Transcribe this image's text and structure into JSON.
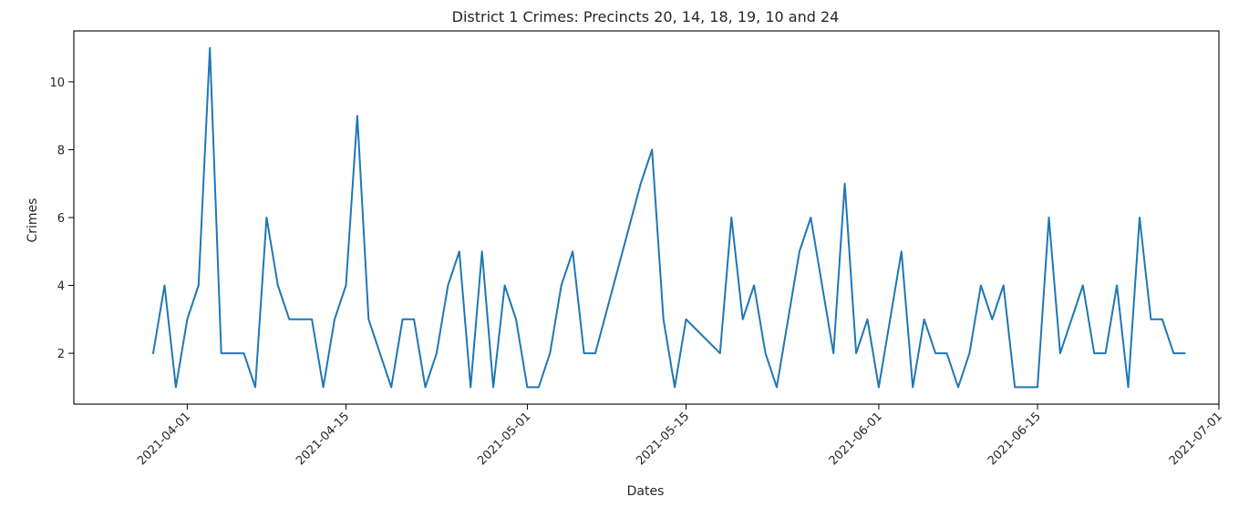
{
  "chart_data": {
    "type": "line",
    "title": "District 1 Crimes: Precincts 20, 14, 18, 19, 10 and 24",
    "xlabel": "Dates",
    "ylabel": "Crimes",
    "xlim": [
      "2021-03-22",
      "2021-07-01"
    ],
    "ylim": [
      0.5,
      11.5
    ],
    "x_ticks": [
      "2021-04-01",
      "2021-04-15",
      "2021-05-01",
      "2021-05-15",
      "2021-06-01",
      "2021-06-15",
      "2021-07-01"
    ],
    "y_ticks": [
      2,
      4,
      6,
      8,
      10
    ],
    "grid": false,
    "series": [
      {
        "name": "Crimes",
        "color": "#1f77b4",
        "x": [
          "2021-03-29",
          "2021-03-30",
          "2021-03-31",
          "2021-04-01",
          "2021-04-02",
          "2021-04-03",
          "2021-04-04",
          "2021-04-05",
          "2021-04-06",
          "2021-04-07",
          "2021-04-08",
          "2021-04-09",
          "2021-04-10",
          "2021-04-12",
          "2021-04-13",
          "2021-04-14",
          "2021-04-15",
          "2021-04-16",
          "2021-04-17",
          "2021-04-19",
          "2021-04-20",
          "2021-04-21",
          "2021-04-22",
          "2021-04-23",
          "2021-04-24",
          "2021-04-25",
          "2021-04-26",
          "2021-04-27",
          "2021-04-28",
          "2021-04-29",
          "2021-04-30",
          "2021-05-01",
          "2021-05-02",
          "2021-05-03",
          "2021-05-04",
          "2021-05-05",
          "2021-05-06",
          "2021-05-07",
          "2021-05-11",
          "2021-05-12",
          "2021-05-13",
          "2021-05-14",
          "2021-05-15",
          "2021-05-18",
          "2021-05-19",
          "2021-05-20",
          "2021-05-21",
          "2021-05-22",
          "2021-05-23",
          "2021-05-25",
          "2021-05-26",
          "2021-05-28",
          "2021-05-29",
          "2021-05-30",
          "2021-05-31",
          "2021-06-01",
          "2021-06-03",
          "2021-06-04",
          "2021-06-05",
          "2021-06-06",
          "2021-06-07",
          "2021-06-08",
          "2021-06-09",
          "2021-06-10",
          "2021-06-11",
          "2021-06-12",
          "2021-06-13",
          "2021-06-14",
          "2021-06-15",
          "2021-06-16",
          "2021-06-17",
          "2021-06-19",
          "2021-06-20",
          "2021-06-21",
          "2021-06-22",
          "2021-06-23",
          "2021-06-24",
          "2021-06-25",
          "2021-06-26",
          "2021-06-27",
          "2021-06-28"
        ],
        "values": [
          2,
          4,
          1,
          3,
          4,
          11,
          2,
          2,
          2,
          1,
          6,
          4,
          3,
          3,
          1,
          3,
          4,
          9,
          3,
          1,
          3,
          3,
          1,
          2,
          4,
          5,
          1,
          5,
          1,
          4,
          3,
          1,
          1,
          2,
          4,
          5,
          2,
          2,
          7,
          8,
          3,
          1,
          3,
          2,
          6,
          3,
          4,
          2,
          1,
          5,
          6,
          2,
          7,
          2,
          3,
          1,
          5,
          1,
          3,
          2,
          2,
          1,
          2,
          4,
          3,
          4,
          1,
          1,
          1,
          6,
          2,
          4,
          2,
          2,
          4,
          1,
          6,
          3,
          3,
          2,
          2
        ]
      }
    ]
  }
}
